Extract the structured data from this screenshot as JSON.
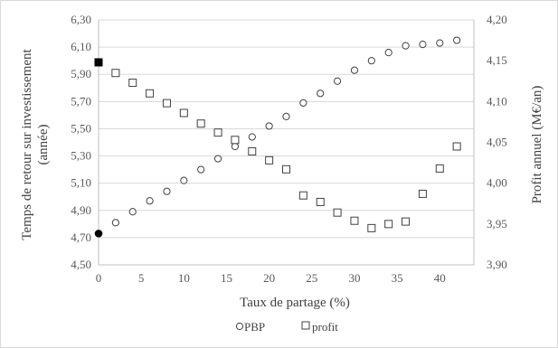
{
  "chart_data": {
    "type": "scatter",
    "xlabel": "Taux de partage (%)",
    "ylabel_left_lines": [
      "Temps de retour sur investissement",
      "(année)"
    ],
    "ylabel_right": "Profit annuel (M€/an)",
    "xlim": [
      0,
      44
    ],
    "ylim_left": [
      4.5,
      6.3
    ],
    "ylim_right": [
      3.9,
      4.2
    ],
    "x_ticks": [
      "0",
      "5",
      "10",
      "15",
      "20",
      "25",
      "30",
      "35",
      "40"
    ],
    "y_left_ticks": [
      "4,50",
      "4,70",
      "4,90",
      "5,10",
      "5,30",
      "5,50",
      "5,70",
      "5,90",
      "6,10",
      "6,30"
    ],
    "y_right_ticks": [
      "3,90",
      "3,95",
      "4,00",
      "4,05",
      "4,10",
      "4,15",
      "4,20"
    ],
    "grid": "horizontal",
    "legend_position": "bottom",
    "series": [
      {
        "name": "PBP",
        "axis": "left",
        "marker": "circle",
        "highlight": {
          "x": 0,
          "y": 4.73
        },
        "points": [
          [
            2,
            4.81
          ],
          [
            4,
            4.89
          ],
          [
            6,
            4.97
          ],
          [
            8,
            5.04
          ],
          [
            10,
            5.12
          ],
          [
            12,
            5.2
          ],
          [
            14,
            5.28
          ],
          [
            16,
            5.37
          ],
          [
            18,
            5.44
          ],
          [
            20,
            5.52
          ],
          [
            22,
            5.59
          ],
          [
            24,
            5.69
          ],
          [
            26,
            5.76
          ],
          [
            28,
            5.85
          ],
          [
            30,
            5.93
          ],
          [
            32,
            6.0
          ],
          [
            34,
            6.06
          ],
          [
            36,
            6.11
          ],
          [
            38,
            6.12
          ],
          [
            40,
            6.13
          ],
          [
            42,
            6.15
          ]
        ]
      },
      {
        "name": "profit",
        "axis": "right",
        "marker": "square",
        "highlight": {
          "x": 0,
          "y": 4.148
        },
        "points": [
          [
            2,
            4.135
          ],
          [
            4,
            4.123
          ],
          [
            6,
            4.11
          ],
          [
            8,
            4.098
          ],
          [
            10,
            4.086
          ],
          [
            12,
            4.073
          ],
          [
            14,
            4.062
          ],
          [
            16,
            4.053
          ],
          [
            18,
            4.039
          ],
          [
            20,
            4.028
          ],
          [
            22,
            4.017
          ],
          [
            24,
            3.985
          ],
          [
            26,
            3.977
          ],
          [
            28,
            3.964
          ],
          [
            30,
            3.954
          ],
          [
            32,
            3.945
          ],
          [
            34,
            3.95
          ],
          [
            36,
            3.953
          ],
          [
            38,
            3.987
          ],
          [
            40,
            4.018
          ],
          [
            42,
            4.045
          ]
        ]
      }
    ]
  },
  "colors": {
    "axis_line": "#bfbfbf",
    "grid_line": "#d9d9d9",
    "marker_stroke": "#404040",
    "highlight_fill": "#000000"
  }
}
